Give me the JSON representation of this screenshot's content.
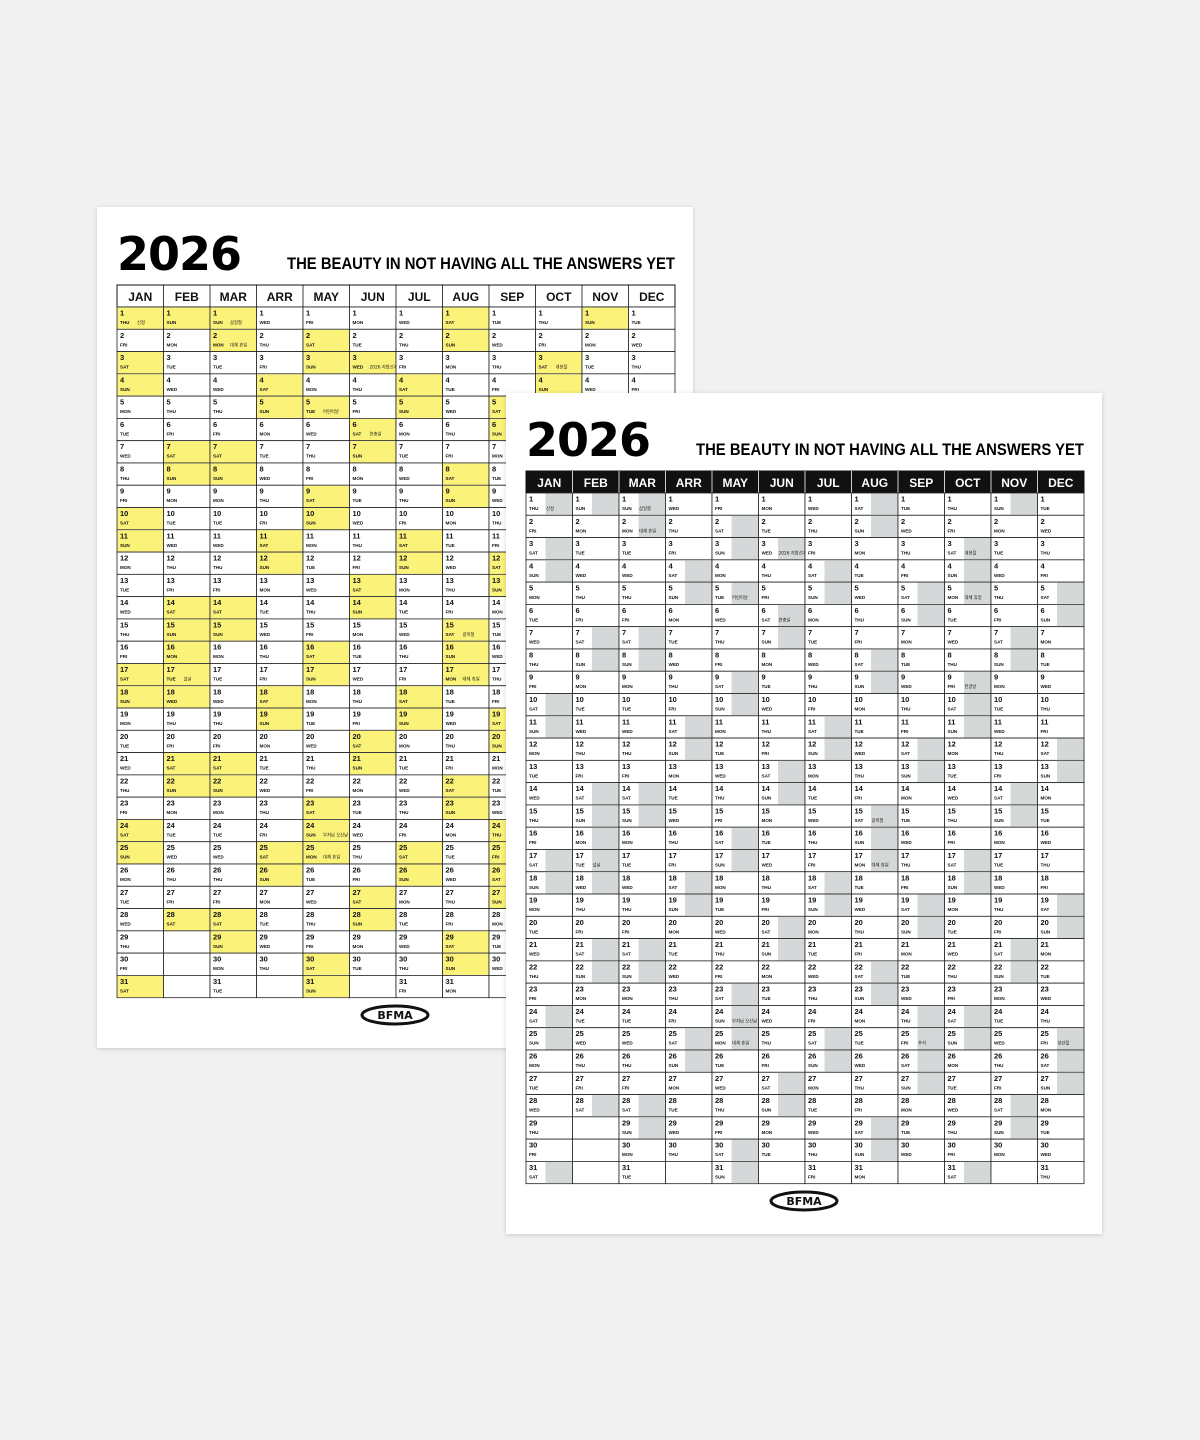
{
  "posters": [
    {
      "year": "2026",
      "tagline": "THE BEAUTY IN NOT HAVING ALL THE ANSWERS YET",
      "logo": "BFMA",
      "highlight_color": "#fbf27a",
      "highlight_area": "full",
      "header_style": "light"
    },
    {
      "year": "2026",
      "tagline": "THE BEAUTY IN NOT HAVING ALL THE ANSWERS YET",
      "logo": "BFMA",
      "highlight_color": "#d5d8d8",
      "highlight_area": "right",
      "header_style": "dark"
    }
  ],
  "calendar": {
    "months": [
      {
        "name": "JAN",
        "days": [
          1,
          2,
          3,
          4,
          5,
          6,
          7,
          8,
          9,
          10,
          11,
          12,
          13,
          14,
          15,
          16,
          17,
          18,
          19,
          20,
          21,
          22,
          23,
          24,
          25,
          26,
          27,
          28,
          29,
          30,
          31
        ],
        "weekdays": [
          "THU",
          "FRI",
          "SAT",
          "SUN",
          "MON",
          "TUE",
          "WED",
          "THU",
          "FRI",
          "SAT",
          "SUN",
          "MON",
          "TUE",
          "WED",
          "THU",
          "FRI",
          "SAT",
          "SUN",
          "MON",
          "TUE",
          "WED",
          "THU",
          "FRI",
          "SAT",
          "SUN",
          "MON",
          "TUE",
          "WED",
          "THU",
          "FRI",
          "SAT"
        ],
        "highlighted": [
          1,
          3,
          4,
          10,
          11,
          17,
          18,
          24,
          25,
          31
        ],
        "notes": [
          {
            "day": 1,
            "text": "신정"
          }
        ]
      },
      {
        "name": "FEB",
        "days": [
          1,
          2,
          3,
          4,
          5,
          6,
          7,
          8,
          9,
          10,
          11,
          12,
          13,
          14,
          15,
          16,
          17,
          18,
          19,
          20,
          21,
          22,
          23,
          24,
          25,
          26,
          27,
          28
        ],
        "weekdays": [
          "SUN",
          "MON",
          "TUE",
          "WED",
          "THU",
          "FRI",
          "SAT",
          "SUN",
          "MON",
          "TUE",
          "WED",
          "THU",
          "FRI",
          "SAT",
          "SUN",
          "MON",
          "TUE",
          "WED",
          "THU",
          "FRI",
          "SAT",
          "SUN",
          "MON",
          "TUE",
          "WED",
          "THU",
          "FRI",
          "SAT"
        ],
        "highlighted": [
          1,
          7,
          8,
          14,
          15,
          16,
          17,
          18,
          21,
          22,
          28
        ],
        "notes": [
          {
            "day": 17,
            "text": "설날"
          }
        ]
      },
      {
        "name": "MAR",
        "days": [
          1,
          2,
          3,
          4,
          5,
          6,
          7,
          8,
          9,
          10,
          11,
          12,
          13,
          14,
          15,
          16,
          17,
          18,
          19,
          20,
          21,
          22,
          23,
          24,
          25,
          26,
          27,
          28,
          29,
          30,
          31
        ],
        "weekdays": [
          "SUN",
          "MON",
          "TUE",
          "WED",
          "THU",
          "FRI",
          "SAT",
          "SUN",
          "MON",
          "TUE",
          "WED",
          "THU",
          "FRI",
          "SAT",
          "SUN",
          "MON",
          "TUE",
          "WED",
          "THU",
          "FRI",
          "SAT",
          "SUN",
          "MON",
          "TUE",
          "WED",
          "THU",
          "FRI",
          "SAT",
          "SUN",
          "MON",
          "TUE"
        ],
        "highlighted": [
          1,
          2,
          7,
          8,
          14,
          15,
          21,
          22,
          28,
          29
        ],
        "notes": [
          {
            "day": 1,
            "text": "삼일절"
          },
          {
            "day": 2,
            "text": "대체 휴일"
          }
        ]
      },
      {
        "name": "ARR",
        "days": [
          1,
          2,
          3,
          4,
          5,
          6,
          7,
          8,
          9,
          10,
          11,
          12,
          13,
          14,
          15,
          16,
          17,
          18,
          19,
          20,
          21,
          22,
          23,
          24,
          25,
          26,
          27,
          28,
          29,
          30
        ],
        "weekdays": [
          "WED",
          "THU",
          "FRI",
          "SAT",
          "SUN",
          "MON",
          "TUE",
          "WED",
          "THU",
          "FRI",
          "SAT",
          "SUN",
          "MON",
          "TUE",
          "WED",
          "THU",
          "FRI",
          "SAT",
          "SUN",
          "MON",
          "TUE",
          "WED",
          "THU",
          "FRI",
          "SAT",
          "SUN",
          "MON",
          "TUE",
          "WED",
          "THU"
        ],
        "highlighted": [
          4,
          5,
          11,
          12,
          18,
          19,
          25,
          26
        ],
        "notes": []
      },
      {
        "name": "MAY",
        "days": [
          1,
          2,
          3,
          4,
          5,
          6,
          7,
          8,
          9,
          10,
          11,
          12,
          13,
          14,
          15,
          16,
          17,
          18,
          19,
          20,
          21,
          22,
          23,
          24,
          25,
          26,
          27,
          28,
          29,
          30,
          31
        ],
        "weekdays": [
          "FRI",
          "SAT",
          "SUN",
          "MON",
          "TUE",
          "WED",
          "THU",
          "FRI",
          "SAT",
          "SUN",
          "MON",
          "TUE",
          "WED",
          "THU",
          "FRI",
          "SAT",
          "SUN",
          "MON",
          "TUE",
          "WED",
          "THU",
          "FRI",
          "SAT",
          "SUN",
          "MON",
          "TUE",
          "WED",
          "THU",
          "FRI",
          "SAT",
          "SUN"
        ],
        "highlighted": [
          2,
          3,
          5,
          9,
          10,
          16,
          17,
          23,
          24,
          25,
          30,
          31
        ],
        "notes": [
          {
            "day": 5,
            "text": "어린이날"
          },
          {
            "day": 24,
            "text": "부처님 오신날"
          },
          {
            "day": 25,
            "text": "대체 휴일"
          }
        ]
      },
      {
        "name": "JUN",
        "days": [
          1,
          2,
          3,
          4,
          5,
          6,
          7,
          8,
          9,
          10,
          11,
          12,
          13,
          14,
          15,
          16,
          17,
          18,
          19,
          20,
          21,
          22,
          23,
          24,
          25,
          26,
          27,
          28,
          29,
          30
        ],
        "weekdays": [
          "MON",
          "TUE",
          "WED",
          "THU",
          "FRI",
          "SAT",
          "SUN",
          "MON",
          "TUE",
          "WED",
          "THU",
          "FRI",
          "SAT",
          "SUN",
          "MON",
          "TUE",
          "WED",
          "THU",
          "FRI",
          "SAT",
          "SUN",
          "MON",
          "TUE",
          "WED",
          "THU",
          "FRI",
          "SAT",
          "SUN",
          "MON",
          "TUE"
        ],
        "highlighted": [
          3,
          6,
          7,
          13,
          14,
          20,
          21,
          27,
          28
        ],
        "notes": [
          {
            "day": 3,
            "text": "2026 지방선거"
          },
          {
            "day": 6,
            "text": "현충일"
          }
        ]
      },
      {
        "name": "JUL",
        "days": [
          1,
          2,
          3,
          4,
          5,
          6,
          7,
          8,
          9,
          10,
          11,
          12,
          13,
          14,
          15,
          16,
          17,
          18,
          19,
          20,
          21,
          22,
          23,
          24,
          25,
          26,
          27,
          28,
          29,
          30,
          31
        ],
        "weekdays": [
          "WED",
          "THU",
          "FRI",
          "SAT",
          "SUN",
          "MON",
          "TUE",
          "WED",
          "THU",
          "FRI",
          "SAT",
          "SUN",
          "MON",
          "TUE",
          "WED",
          "THU",
          "FRI",
          "SAT",
          "SUN",
          "MON",
          "TUE",
          "WED",
          "THU",
          "FRI",
          "SAT",
          "SUN",
          "MON",
          "TUE",
          "WED",
          "THU",
          "FRI"
        ],
        "highlighted": [
          4,
          5,
          11,
          12,
          18,
          19,
          25,
          26
        ],
        "notes": []
      },
      {
        "name": "AUG",
        "days": [
          1,
          2,
          3,
          4,
          5,
          6,
          7,
          8,
          9,
          10,
          11,
          12,
          13,
          14,
          15,
          16,
          17,
          18,
          19,
          20,
          21,
          22,
          23,
          24,
          25,
          26,
          27,
          28,
          29,
          30,
          31
        ],
        "weekdays": [
          "SAT",
          "SUN",
          "MON",
          "TUE",
          "WED",
          "THU",
          "FRI",
          "SAT",
          "SUN",
          "MON",
          "TUE",
          "WED",
          "THU",
          "FRI",
          "SAT",
          "SUN",
          "MON",
          "TUE",
          "WED",
          "THU",
          "FRI",
          "SAT",
          "SUN",
          "MON",
          "TUE",
          "WED",
          "THU",
          "FRI",
          "SAT",
          "SUN",
          "MON"
        ],
        "highlighted": [
          1,
          2,
          8,
          9,
          15,
          16,
          17,
          22,
          23,
          29,
          30
        ],
        "notes": [
          {
            "day": 15,
            "text": "광복절"
          },
          {
            "day": 17,
            "text": "대체 휴일"
          }
        ]
      },
      {
        "name": "SEP",
        "days": [
          1,
          2,
          3,
          4,
          5,
          6,
          7,
          8,
          9,
          10,
          11,
          12,
          13,
          14,
          15,
          16,
          17,
          18,
          19,
          20,
          21,
          22,
          23,
          24,
          25,
          26,
          27,
          28,
          29,
          30
        ],
        "weekdays": [
          "TUE",
          "WED",
          "THU",
          "FRI",
          "SAT",
          "SUN",
          "MON",
          "TUE",
          "WED",
          "THU",
          "FRI",
          "SAT",
          "SUN",
          "MON",
          "TUE",
          "WED",
          "THU",
          "FRI",
          "SAT",
          "SUN",
          "MON",
          "TUE",
          "WED",
          "THU",
          "FRI",
          "SAT",
          "SUN",
          "MON",
          "TUE",
          "WED"
        ],
        "highlighted": [
          5,
          6,
          12,
          13,
          19,
          20,
          24,
          25,
          26,
          27
        ],
        "notes": [
          {
            "day": 25,
            "text": "추석"
          }
        ]
      },
      {
        "name": "OCT",
        "days": [
          1,
          2,
          3,
          4,
          5,
          6,
          7,
          8,
          9,
          10,
          11,
          12,
          13,
          14,
          15,
          16,
          17,
          18,
          19,
          20,
          21,
          22,
          23,
          24,
          25,
          26,
          27,
          28,
          29,
          30,
          31
        ],
        "weekdays": [
          "THU",
          "FRI",
          "SAT",
          "SUN",
          "MON",
          "TUE",
          "WED",
          "THU",
          "FRI",
          "SAT",
          "SUN",
          "MON",
          "TUE",
          "WED",
          "THU",
          "FRI",
          "SAT",
          "SUN",
          "MON",
          "TUE",
          "WED",
          "THU",
          "FRI",
          "SAT",
          "SUN",
          "MON",
          "TUE",
          "WED",
          "THU",
          "FRI",
          "SAT"
        ],
        "highlighted": [
          3,
          4,
          5,
          9,
          10,
          11,
          17,
          18,
          24,
          25,
          31
        ],
        "notes": [
          {
            "day": 3,
            "text": "개천절"
          },
          {
            "day": 5,
            "text": "대체 휴일"
          },
          {
            "day": 9,
            "text": "한글날"
          }
        ]
      },
      {
        "name": "NOV",
        "days": [
          1,
          2,
          3,
          4,
          5,
          6,
          7,
          8,
          9,
          10,
          11,
          12,
          13,
          14,
          15,
          16,
          17,
          18,
          19,
          20,
          21,
          22,
          23,
          24,
          25,
          26,
          27,
          28,
          29,
          30
        ],
        "weekdays": [
          "SUN",
          "MON",
          "TUE",
          "WED",
          "THU",
          "FRI",
          "SAT",
          "SUN",
          "MON",
          "TUE",
          "WED",
          "THU",
          "FRI",
          "SAT",
          "SUN",
          "MON",
          "TUE",
          "WED",
          "THU",
          "FRI",
          "SAT",
          "SUN",
          "MON",
          "TUE",
          "WED",
          "THU",
          "FRI",
          "SAT",
          "SUN",
          "MON"
        ],
        "highlighted": [
          1,
          7,
          8,
          14,
          15,
          21,
          22,
          28,
          29
        ],
        "notes": []
      },
      {
        "name": "DEC",
        "days": [
          1,
          2,
          3,
          4,
          5,
          6,
          7,
          8,
          9,
          10,
          11,
          12,
          13,
          14,
          15,
          16,
          17,
          18,
          19,
          20,
          21,
          22,
          23,
          24,
          25,
          26,
          27,
          28,
          29,
          30,
          31
        ],
        "weekdays": [
          "TUE",
          "WED",
          "THU",
          "FRI",
          "SAT",
          "SUN",
          "MON",
          "TUE",
          "WED",
          "THU",
          "FRI",
          "SAT",
          "SUN",
          "MON",
          "TUE",
          "WED",
          "THU",
          "FRI",
          "SAT",
          "SUN",
          "MON",
          "TUE",
          "WED",
          "THU",
          "FRI",
          "SAT",
          "SUN",
          "MON",
          "TUE",
          "WED",
          "THU"
        ],
        "highlighted": [
          5,
          6,
          12,
          13,
          19,
          20,
          25,
          26,
          27
        ],
        "notes": [
          {
            "day": 25,
            "text": "성탄절"
          }
        ]
      }
    ]
  }
}
